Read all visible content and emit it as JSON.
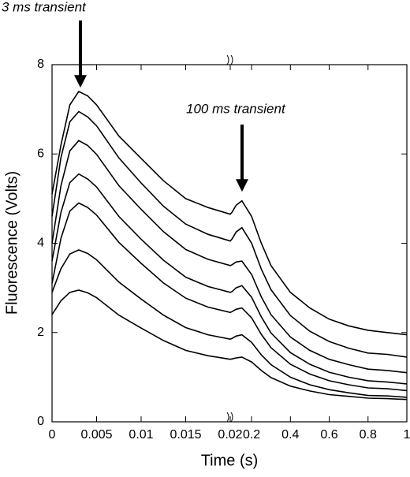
{
  "chart_data": {
    "type": "line",
    "xlabel": "Time (s)",
    "ylabel": "Fluorescence (Volts)",
    "annotations": [
      "3 ms transient",
      "100 ms transient"
    ],
    "color": "#000000",
    "xlim": [
      0,
      0.02
    ],
    "xticks": [
      0,
      0.005,
      0.01,
      0.015,
      0.02
    ],
    "x2lim": [
      0.09,
      1
    ],
    "x2ticks": [
      0.2,
      0.4,
      0.6,
      0.8,
      1
    ],
    "ylim": [
      0,
      8
    ],
    "yticks": [
      0,
      2,
      4,
      6,
      8
    ],
    "x": [
      0,
      0.001,
      0.002,
      0.003,
      0.004,
      0.005,
      0.0075,
      0.01,
      0.0125,
      0.015,
      0.0175,
      0.02,
      0.1,
      0.12,
      0.15,
      0.2,
      0.25,
      0.3,
      0.4,
      0.5,
      0.6,
      0.7,
      0.8,
      0.9,
      1
    ],
    "series": [
      {
        "values": [
          5.1,
          6.2,
          7.1,
          7.4,
          7.3,
          7.1,
          6.4,
          5.9,
          5.4,
          5.0,
          4.8,
          4.65,
          4.7,
          4.85,
          4.95,
          4.6,
          4.0,
          3.5,
          2.9,
          2.55,
          2.3,
          2.15,
          2.05,
          2.0,
          1.95
        ]
      },
      {
        "values": [
          4.6,
          5.92,
          6.72,
          6.95,
          6.83,
          6.63,
          5.91,
          5.35,
          4.83,
          4.43,
          4.2,
          4.05,
          4.1,
          4.25,
          4.35,
          4.0,
          3.42,
          2.96,
          2.38,
          2.03,
          1.8,
          1.65,
          1.54,
          1.51,
          1.45
        ]
      },
      {
        "values": [
          4.0,
          5.29,
          6.07,
          6.3,
          6.19,
          5.99,
          5.29,
          4.76,
          4.26,
          3.86,
          3.64,
          3.5,
          3.52,
          3.58,
          3.6,
          3.3,
          2.8,
          2.4,
          1.9,
          1.6,
          1.4,
          1.28,
          1.18,
          1.15,
          1.1
        ]
      },
      {
        "values": [
          3.6,
          4.69,
          5.36,
          5.55,
          5.44,
          5.26,
          4.6,
          4.09,
          3.62,
          3.24,
          3.03,
          2.9,
          2.92,
          3.0,
          3.05,
          2.79,
          2.35,
          1.99,
          1.55,
          1.29,
          1.11,
          1.0,
          0.92,
          0.89,
          0.85
        ]
      },
      {
        "values": [
          3.1,
          4.11,
          4.72,
          4.9,
          4.8,
          4.63,
          4.02,
          3.55,
          3.11,
          2.77,
          2.57,
          2.45,
          2.47,
          2.52,
          2.55,
          2.33,
          1.96,
          1.66,
          1.29,
          1.07,
          0.92,
          0.83,
          0.76,
          0.74,
          0.7
        ]
      },
      {
        "values": [
          2.9,
          3.43,
          3.76,
          3.85,
          3.77,
          3.63,
          3.13,
          2.75,
          2.39,
          2.11,
          1.95,
          1.85,
          1.87,
          1.92,
          1.95,
          1.78,
          1.5,
          1.28,
          1.0,
          0.83,
          0.72,
          0.65,
          0.59,
          0.58,
          0.55
        ]
      },
      {
        "values": [
          2.4,
          2.71,
          2.9,
          2.95,
          2.89,
          2.78,
          2.39,
          2.1,
          1.82,
          1.6,
          1.48,
          1.4,
          1.41,
          1.43,
          1.45,
          1.34,
          1.15,
          0.99,
          0.8,
          0.69,
          0.61,
          0.57,
          0.53,
          0.52,
          0.5
        ]
      }
    ]
  }
}
